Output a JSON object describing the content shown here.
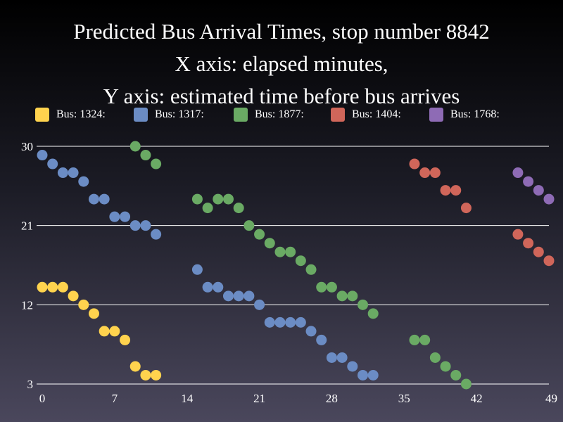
{
  "chart_data": {
    "type": "scatter",
    "title_lines": [
      "Predicted Bus Arrival Times, stop number 8842",
      "X axis: elapsed minutes,",
      "Y axis: estimated time before bus arrives"
    ],
    "xlim": [
      0,
      49
    ],
    "ylim": [
      3,
      30
    ],
    "x_ticks": [
      0,
      7,
      14,
      21,
      28,
      35,
      42,
      49
    ],
    "y_ticks": [
      3,
      12,
      21,
      30
    ],
    "grid": true,
    "legend_position": "top",
    "series": [
      {
        "name": "Bus: 1324:",
        "color": "#ffd34e",
        "points": [
          [
            0,
            14
          ],
          [
            1,
            14
          ],
          [
            2,
            14
          ],
          [
            3,
            13
          ],
          [
            4,
            12
          ],
          [
            5,
            11
          ],
          [
            6,
            9
          ],
          [
            7,
            9
          ],
          [
            8,
            8
          ],
          [
            9,
            5
          ],
          [
            10,
            4
          ],
          [
            11,
            4
          ]
        ]
      },
      {
        "name": "Bus: 1317:",
        "color": "#6b8cc4",
        "points": [
          [
            0,
            29
          ],
          [
            1,
            28
          ],
          [
            2,
            27
          ],
          [
            3,
            27
          ],
          [
            4,
            26
          ],
          [
            5,
            24
          ],
          [
            6,
            24
          ],
          [
            7,
            22
          ],
          [
            8,
            22
          ],
          [
            9,
            21
          ],
          [
            10,
            21
          ],
          [
            11,
            20
          ],
          [
            15,
            16
          ],
          [
            16,
            14
          ],
          [
            17,
            14
          ],
          [
            18,
            13
          ],
          [
            19,
            13
          ],
          [
            20,
            13
          ],
          [
            21,
            12
          ],
          [
            22,
            10
          ],
          [
            23,
            10
          ],
          [
            24,
            10
          ],
          [
            25,
            10
          ],
          [
            26,
            9
          ],
          [
            27,
            8
          ],
          [
            28,
            6
          ],
          [
            29,
            6
          ],
          [
            30,
            5
          ],
          [
            31,
            4
          ],
          [
            32,
            4
          ]
        ]
      },
      {
        "name": "Bus: 1877:",
        "color": "#6aaa64",
        "points": [
          [
            9,
            30
          ],
          [
            10,
            29
          ],
          [
            11,
            28
          ],
          [
            15,
            24
          ],
          [
            16,
            23
          ],
          [
            17,
            24
          ],
          [
            18,
            24
          ],
          [
            19,
            23
          ],
          [
            20,
            21
          ],
          [
            21,
            20
          ],
          [
            22,
            19
          ],
          [
            23,
            18
          ],
          [
            24,
            18
          ],
          [
            25,
            17
          ],
          [
            26,
            16
          ],
          [
            27,
            14
          ],
          [
            28,
            14
          ],
          [
            29,
            13
          ],
          [
            30,
            13
          ],
          [
            31,
            12
          ],
          [
            32,
            11
          ],
          [
            36,
            8
          ],
          [
            37,
            8
          ],
          [
            38,
            6
          ],
          [
            39,
            5
          ],
          [
            40,
            4
          ],
          [
            41,
            3
          ]
        ]
      },
      {
        "name": "Bus: 1404:",
        "color": "#d0665a",
        "points": [
          [
            36,
            28
          ],
          [
            37,
            27
          ],
          [
            38,
            27
          ],
          [
            39,
            25
          ],
          [
            40,
            25
          ],
          [
            41,
            23
          ],
          [
            46,
            20
          ],
          [
            47,
            19
          ],
          [
            48,
            18
          ],
          [
            49,
            17
          ]
        ]
      },
      {
        "name": "Bus: 1768:",
        "color": "#8e6bb5",
        "points": [
          [
            46,
            27
          ],
          [
            47,
            26
          ],
          [
            48,
            25
          ],
          [
            49,
            24
          ]
        ]
      }
    ]
  }
}
